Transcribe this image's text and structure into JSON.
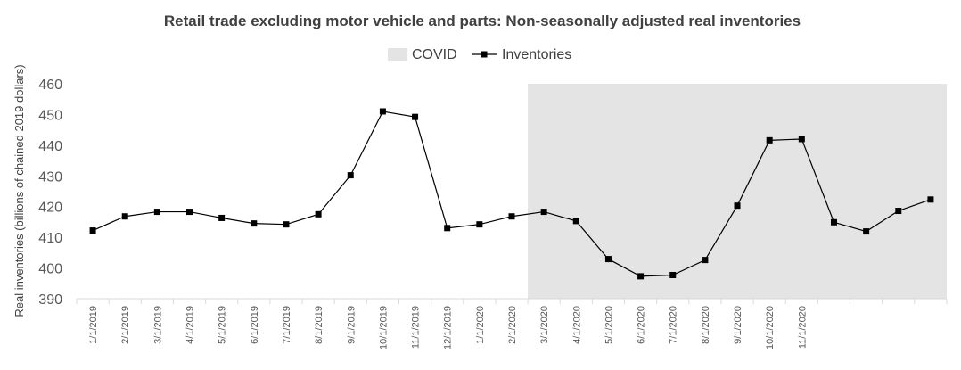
{
  "chart_data": {
    "type": "line",
    "title": "Retail trade excluding motor vehicle and parts: Non-seasonally  adjusted real inventories",
    "ylabel": "Real inventories (billions of chained 2019 dollars)",
    "xlabel": "",
    "ylim": [
      390,
      460
    ],
    "yticks": [
      390,
      400,
      410,
      420,
      430,
      440,
      450,
      460
    ],
    "grid": false,
    "legend_position": "top-center",
    "categories": [
      "1/1/2019",
      "2/1/2019",
      "3/1/2019",
      "4/1/2019",
      "5/1/2019",
      "6/1/2019",
      "7/1/2019",
      "8/1/2019",
      "9/1/2019",
      "10/1/2019",
      "11/1/2019",
      "12/1/2019",
      "1/1/2020",
      "2/1/2020",
      "3/1/2020",
      "4/1/2020",
      "5/1/2020",
      "6/1/2020",
      "7/1/2020",
      "8/1/2020",
      "9/1/2020",
      "10/1/2020",
      "11/1/2020",
      "",
      "",
      "",
      ""
    ],
    "series": [
      {
        "name": "Inventories",
        "color": "#000000",
        "marker": "square",
        "values": [
          412.2,
          416.8,
          418.3,
          418.3,
          416.3,
          414.5,
          414.2,
          417.5,
          430.2,
          451.0,
          449.2,
          413.0,
          414.2,
          416.8,
          418.3,
          415.3,
          402.9,
          397.3,
          397.7,
          402.6,
          420.3,
          441.6,
          442.0,
          414.9,
          411.9,
          418.6,
          422.3
        ]
      }
    ],
    "shaded_regions": [
      {
        "name": "COVID",
        "color": "#e4e4e4",
        "start_index": 14,
        "end_index": 26
      }
    ]
  }
}
